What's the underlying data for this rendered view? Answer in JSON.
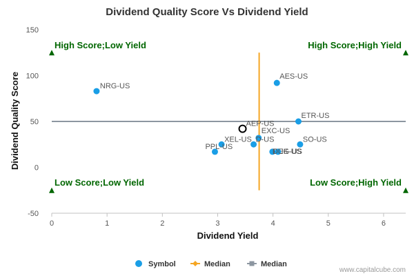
{
  "chart_data": {
    "type": "scatter",
    "title": "Dividend Quality Score Vs Dividend Yield",
    "xlabel": "Dividend Yield",
    "ylabel": "Dividend Quality Score",
    "xlim": [
      0,
      6.4
    ],
    "ylim": [
      -50,
      150
    ],
    "xticks": [
      "0",
      "1",
      "2",
      "3",
      "4",
      "5",
      "6"
    ],
    "yticks": [
      "-50",
      "0",
      "50",
      "100",
      "150"
    ],
    "median_x": 3.75,
    "median_y": 50,
    "series": [
      {
        "name": "Symbol",
        "color": "#1a9ee6",
        "points": [
          {
            "label": "NRG-US",
            "x": 0.81,
            "y": 83
          },
          {
            "label": "AES-US",
            "x": 4.07,
            "y": 92
          },
          {
            "label": "ETR-US",
            "x": 4.46,
            "y": 50
          },
          {
            "label": "EXC-US",
            "x": 3.74,
            "y": 32
          },
          {
            "label": "D-US",
            "x": 3.65,
            "y": 25
          },
          {
            "label": "XEL-US",
            "x": 3.07,
            "y": 25
          },
          {
            "label": "PPL-US",
            "x": 2.95,
            "y": 17
          },
          {
            "label": "SO-US",
            "x": 4.49,
            "y": 25
          },
          {
            "label": "PEG-US",
            "x": 3.99,
            "y": 17
          },
          {
            "label": "DUK-US",
            "x": 4.09,
            "y": 17
          }
        ]
      },
      {
        "name": "AEP-US",
        "highlight": true,
        "points": [
          {
            "label": "AEP-US",
            "x": 3.45,
            "y": 42
          }
        ]
      }
    ],
    "quadrants": {
      "top_left": "High Score;Low Yield",
      "top_right": "High Score;High Yield",
      "bottom_left": "Low Score;Low Yield",
      "bottom_right": "Low Score;High Yield"
    },
    "legend": [
      {
        "label": "Symbol",
        "color": "#1a9ee6",
        "marker": "circle"
      },
      {
        "label": "Median",
        "color": "#f5a623",
        "marker": "diamond-line"
      },
      {
        "label": "Median",
        "color": "#8c96a0",
        "marker": "square-line"
      }
    ],
    "legend_position": "bottom",
    "grid": false,
    "quadrant_marker_color": "#006600",
    "median_x_color": "#f5a623",
    "median_y_color": "#8c96a0"
  },
  "credit": "www.capitalcube.com"
}
